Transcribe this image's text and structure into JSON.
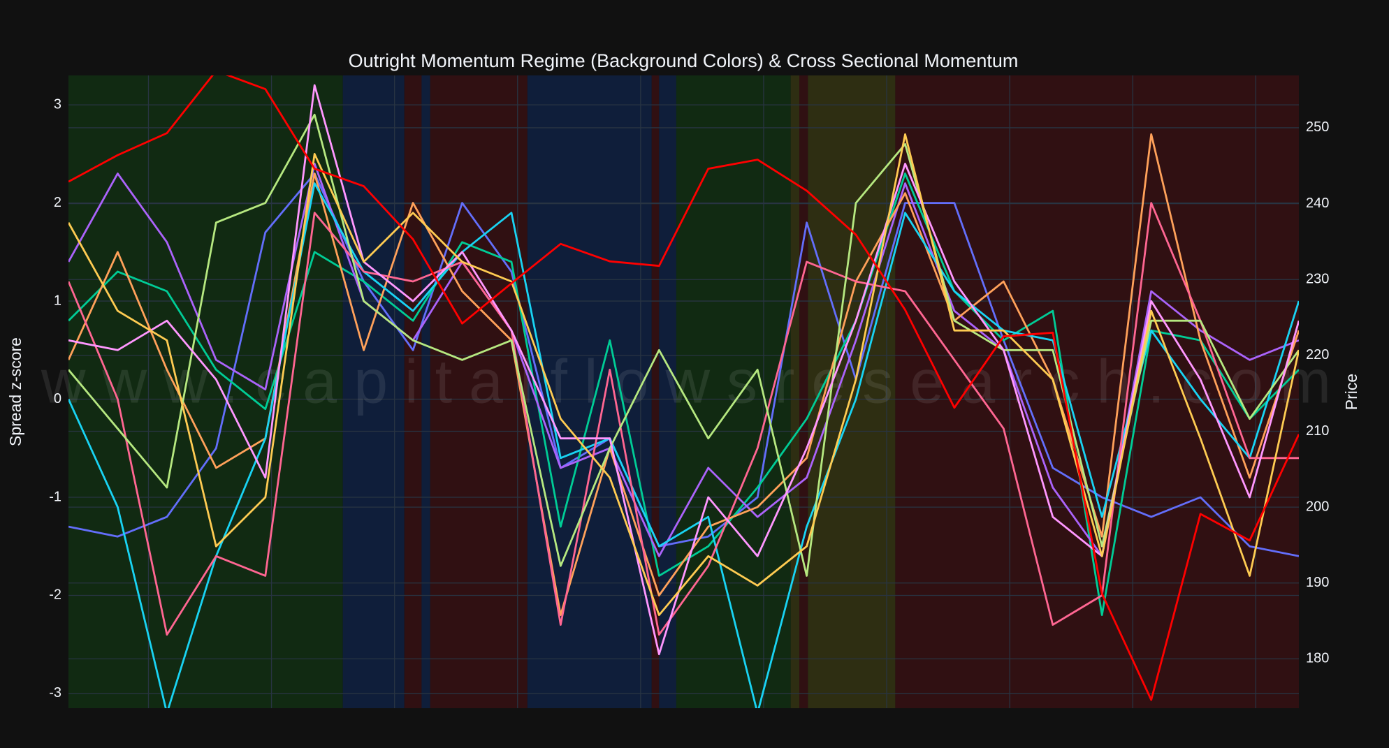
{
  "chart_data": {
    "type": "line",
    "title": "Outright Momentum Regime (Background Colors) & Cross Sectional Momentum",
    "y_label": "Spread z-score",
    "y2_label": "Price",
    "watermark": "www.capitalflowsresearch.com",
    "background": "#111111",
    "grid": true,
    "x": [
      0,
      4,
      8,
      12,
      16,
      20,
      24,
      28,
      32,
      36,
      40,
      44,
      48,
      52,
      56,
      60,
      64,
      68,
      72,
      76,
      80,
      84,
      88,
      92,
      96,
      100
    ],
    "xlim": [
      0,
      100
    ],
    "xticks": [
      6.5,
      16.5,
      26.5,
      36.5,
      46.5,
      56.5,
      66.5,
      76.5,
      86.5,
      96.5
    ],
    "ylim": [
      -3.15,
      3.3
    ],
    "yticks": [
      -3,
      -2,
      -1,
      0,
      1,
      2,
      3
    ],
    "y2lim": [
      173.5,
      256.9
    ],
    "y2ticks": [
      180,
      190,
      200,
      210,
      220,
      230,
      240,
      250
    ],
    "regimes": [
      {
        "start": 0,
        "end": 22.3,
        "color": "#112a12"
      },
      {
        "start": 22.3,
        "end": 27.3,
        "color": "#0f1e3a"
      },
      {
        "start": 27.3,
        "end": 28.7,
        "color": "#301012"
      },
      {
        "start": 28.7,
        "end": 29.4,
        "color": "#0f1e3a"
      },
      {
        "start": 29.4,
        "end": 37.3,
        "color": "#301012"
      },
      {
        "start": 37.3,
        "end": 47.4,
        "color": "#0f1e3a"
      },
      {
        "start": 47.4,
        "end": 48.0,
        "color": "#301012"
      },
      {
        "start": 48.0,
        "end": 49.4,
        "color": "#0f1e3a"
      },
      {
        "start": 49.4,
        "end": 58.7,
        "color": "#112a12"
      },
      {
        "start": 58.7,
        "end": 59.4,
        "color": "#2e2e12"
      },
      {
        "start": 59.4,
        "end": 60.1,
        "color": "#301012"
      },
      {
        "start": 60.1,
        "end": 67.2,
        "color": "#2e2e12"
      },
      {
        "start": 67.2,
        "end": 100,
        "color": "#301012"
      }
    ],
    "series": [
      {
        "color": "#636efa",
        "values": [
          -1.3,
          -1.4,
          -1.2,
          -0.5,
          1.7,
          2.3,
          1.2,
          0.5,
          2.0,
          1.3,
          -0.7,
          -0.4,
          -1.5,
          -1.4,
          -1.0,
          1.8,
          0.2,
          2.0,
          2.0,
          0.6,
          -0.7,
          -1.0,
          -1.2,
          -1.0,
          -1.5,
          -1.6
        ]
      },
      {
        "color": "#00cc96",
        "values": [
          0.8,
          1.3,
          1.1,
          0.3,
          -0.1,
          1.5,
          1.2,
          0.8,
          1.6,
          1.4,
          -1.3,
          0.6,
          -1.8,
          -1.5,
          -0.9,
          -0.2,
          0.8,
          2.3,
          1.1,
          0.6,
          0.9,
          -2.2,
          0.7,
          0.6,
          -0.2,
          0.3
        ]
      },
      {
        "color": "#ab63fa",
        "values": [
          1.4,
          2.3,
          1.6,
          0.4,
          0.1,
          2.4,
          1.0,
          0.6,
          1.4,
          0.7,
          -0.7,
          -0.5,
          -1.6,
          -0.7,
          -1.2,
          -0.8,
          0.6,
          2.2,
          0.9,
          0.5,
          -0.9,
          -1.6,
          1.1,
          0.7,
          0.4,
          0.6
        ]
      },
      {
        "color": "#FFA15A",
        "values": [
          0.4,
          1.5,
          0.3,
          -0.7,
          -0.4,
          2.3,
          0.5,
          2.0,
          1.1,
          0.6,
          -2.2,
          -0.5,
          -2.0,
          -1.3,
          -1.1,
          -0.6,
          1.2,
          2.1,
          0.8,
          1.2,
          0.2,
          -1.4,
          2.7,
          0.6,
          -0.8,
          0.7
        ]
      },
      {
        "color": "#19d3f3",
        "values": [
          0.0,
          -1.1,
          -3.2,
          -1.6,
          -0.4,
          2.2,
          1.3,
          0.9,
          1.5,
          1.9,
          -0.6,
          -0.4,
          -1.5,
          -1.2,
          -3.2,
          -1.3,
          0.0,
          1.9,
          1.1,
          0.7,
          0.6,
          -1.2,
          0.7,
          0.0,
          -0.6,
          1.0
        ]
      },
      {
        "color": "#FF6692",
        "values": [
          1.2,
          0.0,
          -2.4,
          -1.6,
          -1.8,
          1.9,
          1.3,
          1.2,
          1.4,
          0.7,
          -2.3,
          0.3,
          -2.4,
          -1.7,
          -0.5,
          1.4,
          1.2,
          1.1,
          0.4,
          -0.3,
          -2.3,
          -2.0,
          2.0,
          0.8,
          -0.6,
          -0.6
        ]
      },
      {
        "color": "#B6E880",
        "values": [
          0.3,
          -0.3,
          -0.9,
          1.8,
          2.0,
          2.9,
          1.0,
          0.6,
          0.4,
          0.6,
          -1.7,
          -0.5,
          0.5,
          -0.4,
          0.3,
          -1.8,
          2.0,
          2.6,
          0.8,
          0.5,
          0.5,
          -1.5,
          0.8,
          0.8,
          -0.2,
          0.5
        ]
      },
      {
        "color": "#FF97FF",
        "values": [
          0.6,
          0.5,
          0.8,
          0.2,
          -0.8,
          3.2,
          1.4,
          1.0,
          1.5,
          0.7,
          -0.4,
          -0.4,
          -2.6,
          -1.0,
          -1.6,
          -0.5,
          0.8,
          2.4,
          1.2,
          0.5,
          -1.2,
          -1.6,
          1.0,
          0.2,
          -1.0,
          0.8
        ]
      },
      {
        "color": "#FECB52",
        "values": [
          1.8,
          0.9,
          0.6,
          -1.5,
          -1.0,
          2.5,
          1.4,
          1.9,
          1.4,
          1.2,
          -0.2,
          -0.8,
          -2.2,
          -1.6,
          -1.9,
          -1.5,
          0.2,
          2.7,
          0.7,
          0.7,
          0.2,
          -1.6,
          0.9,
          -0.4,
          -1.8,
          0.5
        ]
      },
      {
        "color": "#ff0000",
        "axis": "y2",
        "values": [
          242.9,
          246.4,
          249.3,
          257.5,
          255.1,
          244.6,
          242.3,
          235.3,
          224.2,
          229.5,
          234.7,
          232.4,
          231.8,
          244.6,
          245.8,
          241.7,
          235.9,
          226.0,
          213.1,
          222.5,
          223.0,
          188.6,
          174.6,
          199.1,
          195.6,
          209.6
        ]
      }
    ]
  }
}
